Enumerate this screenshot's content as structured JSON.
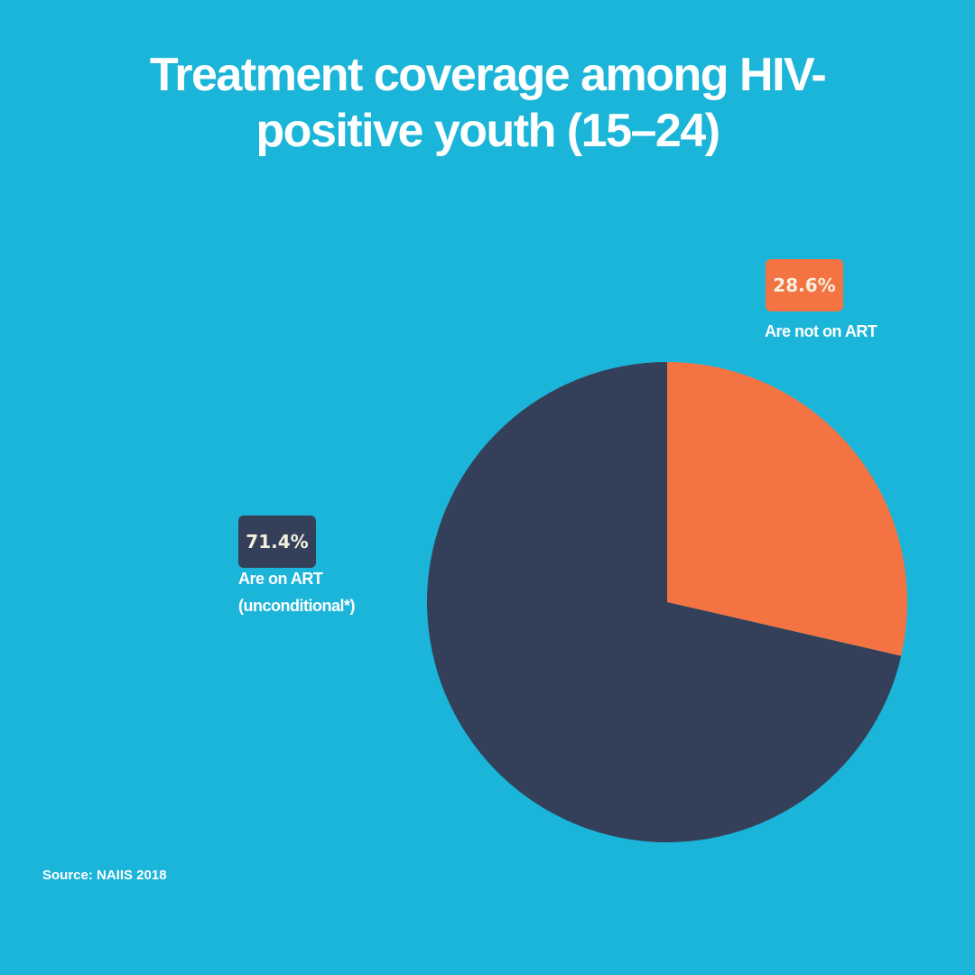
{
  "chart_data": {
    "type": "pie",
    "title_lines": [
      "Treatment coverage among HIV-",
      "positive youth (15–24)"
    ],
    "slices": [
      {
        "label": "Are not on ART",
        "value": 28.6,
        "value_label": "28.6%",
        "color": "#f37442"
      },
      {
        "label_lines": [
          "Are on ART",
          "(unconditional*)"
        ],
        "value": 71.4,
        "value_label": "71.4%",
        "color": "#344059"
      }
    ],
    "start": "top",
    "direction": "clockwise"
  },
  "source": "Source: NAIIS 2018",
  "colors": {
    "background": "#1bb5d9"
  }
}
